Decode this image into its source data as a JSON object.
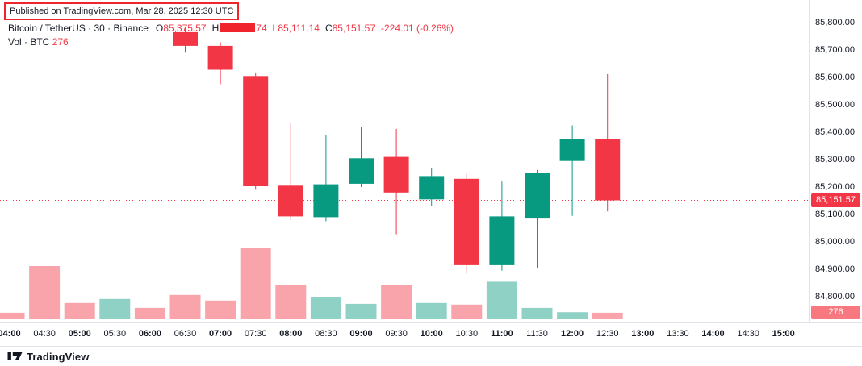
{
  "meta": {
    "publish_note": "Published on TradingView.com, Mar 28, 2025 12:30 UTC",
    "brand": "TradingView"
  },
  "legend": {
    "title": "Bitcoin / TetherUS · 30 · Binance",
    "ohlc": {
      "o_label": "O",
      "o_value": "85,375.57",
      "h_label": "H",
      "h_value_visible": "74",
      "l_label": "L",
      "l_value": "85,111.14",
      "c_label": "C",
      "c_value": "85,151.57",
      "change": "-224.01 (-0.26%)"
    },
    "volume_row": {
      "label": "Vol · BTC",
      "value": "276"
    }
  },
  "axes": {
    "price_labels": [
      "85,800.00",
      "85,700.00",
      "85,600.00",
      "85,500.00",
      "85,400.00",
      "85,300.00",
      "85,200.00",
      "85,100.00",
      "85,000.00",
      "84,900.00",
      "84,800.00"
    ],
    "time_labels": [
      {
        "label": "04:00",
        "bold": true
      },
      {
        "label": "04:30",
        "bold": false
      },
      {
        "label": "05:00",
        "bold": true
      },
      {
        "label": "05:30",
        "bold": false
      },
      {
        "label": "06:00",
        "bold": true
      },
      {
        "label": "06:30",
        "bold": false
      },
      {
        "label": "07:00",
        "bold": true
      },
      {
        "label": "07:30",
        "bold": false
      },
      {
        "label": "08:00",
        "bold": true
      },
      {
        "label": "08:30",
        "bold": false
      },
      {
        "label": "09:00",
        "bold": true
      },
      {
        "label": "09:30",
        "bold": false
      },
      {
        "label": "10:00",
        "bold": true
      },
      {
        "label": "10:30",
        "bold": false
      },
      {
        "label": "11:00",
        "bold": true
      },
      {
        "label": "11:30",
        "bold": false
      },
      {
        "label": "12:00",
        "bold": true
      },
      {
        "label": "12:30",
        "bold": false
      },
      {
        "label": "13:00",
        "bold": true
      },
      {
        "label": "13:30",
        "bold": false
      },
      {
        "label": "14:00",
        "bold": true
      },
      {
        "label": "14:30",
        "bold": false
      },
      {
        "label": "15:00",
        "bold": true
      }
    ],
    "price_tag": "85,151.57",
    "volume_tag": "276"
  },
  "colors": {
    "up": "#089981",
    "down": "#F23645",
    "volume_up": "rgba(8,153,129,0.45)",
    "volume_down": "rgba(242,54,69,0.45)",
    "price_tag_bg": "#F23645",
    "volume_tag_bg": "#F7787F",
    "annotation": "#F0242C",
    "text": "#131722",
    "axis_border": "#E0E3EB"
  },
  "chart_data": {
    "type": "candlestick",
    "symbol": "Bitcoin / TetherUS",
    "interval": "30",
    "exchange": "Binance",
    "last_price": 85151.57,
    "last_open": 85375.57,
    "last_low": 85111.14,
    "change": -224.01,
    "change_pct": -0.26,
    "last_volume_btc": 276,
    "price_axis_range": [
      84706,
      85882
    ],
    "candles": [
      {
        "time": "06:30",
        "open": 85765,
        "high": 85782,
        "low": 85690,
        "close": 85715
      },
      {
        "time": "07:00",
        "open": 85715,
        "high": 85728,
        "low": 85575,
        "close": 85628
      },
      {
        "time": "07:30",
        "open": 85605,
        "high": 85618,
        "low": 85190,
        "close": 85203
      },
      {
        "time": "08:00",
        "open": 85205,
        "high": 85435,
        "low": 85080,
        "close": 85093
      },
      {
        "time": "08:30",
        "open": 85090,
        "high": 85390,
        "low": 85075,
        "close": 85210
      },
      {
        "time": "09:00",
        "open": 85212,
        "high": 85418,
        "low": 85200,
        "close": 85305
      },
      {
        "time": "09:30",
        "open": 85310,
        "high": 85412,
        "low": 85028,
        "close": 85180
      },
      {
        "time": "10:00",
        "open": 85155,
        "high": 85268,
        "low": 85130,
        "close": 85240
      },
      {
        "time": "10:30",
        "open": 85230,
        "high": 85248,
        "low": 84885,
        "close": 84915
      },
      {
        "time": "11:00",
        "open": 84915,
        "high": 85220,
        "low": 84895,
        "close": 85093
      },
      {
        "time": "11:30",
        "open": 85085,
        "high": 85262,
        "low": 84905,
        "close": 85250
      },
      {
        "time": "12:00",
        "open": 85295,
        "high": 85425,
        "low": 85095,
        "close": 85375
      },
      {
        "time": "12:30",
        "open": 85375.57,
        "high": 85611.74,
        "low": 85111.14,
        "close": 85151.57
      }
    ],
    "volume": [
      {
        "time": "04:00",
        "value": 275,
        "up": false
      },
      {
        "time": "04:30",
        "value": 2250,
        "up": false
      },
      {
        "time": "05:00",
        "value": 690,
        "up": false
      },
      {
        "time": "05:30",
        "value": 860,
        "up": true
      },
      {
        "time": "06:00",
        "value": 480,
        "up": false
      },
      {
        "time": "06:30",
        "value": 1030,
        "up": false
      },
      {
        "time": "07:00",
        "value": 790,
        "up": false
      },
      {
        "time": "07:30",
        "value": 3000,
        "up": false
      },
      {
        "time": "08:00",
        "value": 1450,
        "up": false
      },
      {
        "time": "08:30",
        "value": 930,
        "up": true
      },
      {
        "time": "09:00",
        "value": 650,
        "up": true
      },
      {
        "time": "09:30",
        "value": 1450,
        "up": false
      },
      {
        "time": "10:00",
        "value": 690,
        "up": true
      },
      {
        "time": "10:30",
        "value": 620,
        "up": false
      },
      {
        "time": "11:00",
        "value": 1590,
        "up": true
      },
      {
        "time": "11:30",
        "value": 480,
        "up": true
      },
      {
        "time": "12:00",
        "value": 300,
        "up": true
      },
      {
        "time": "12:30",
        "value": 276,
        "up": false
      }
    ]
  }
}
